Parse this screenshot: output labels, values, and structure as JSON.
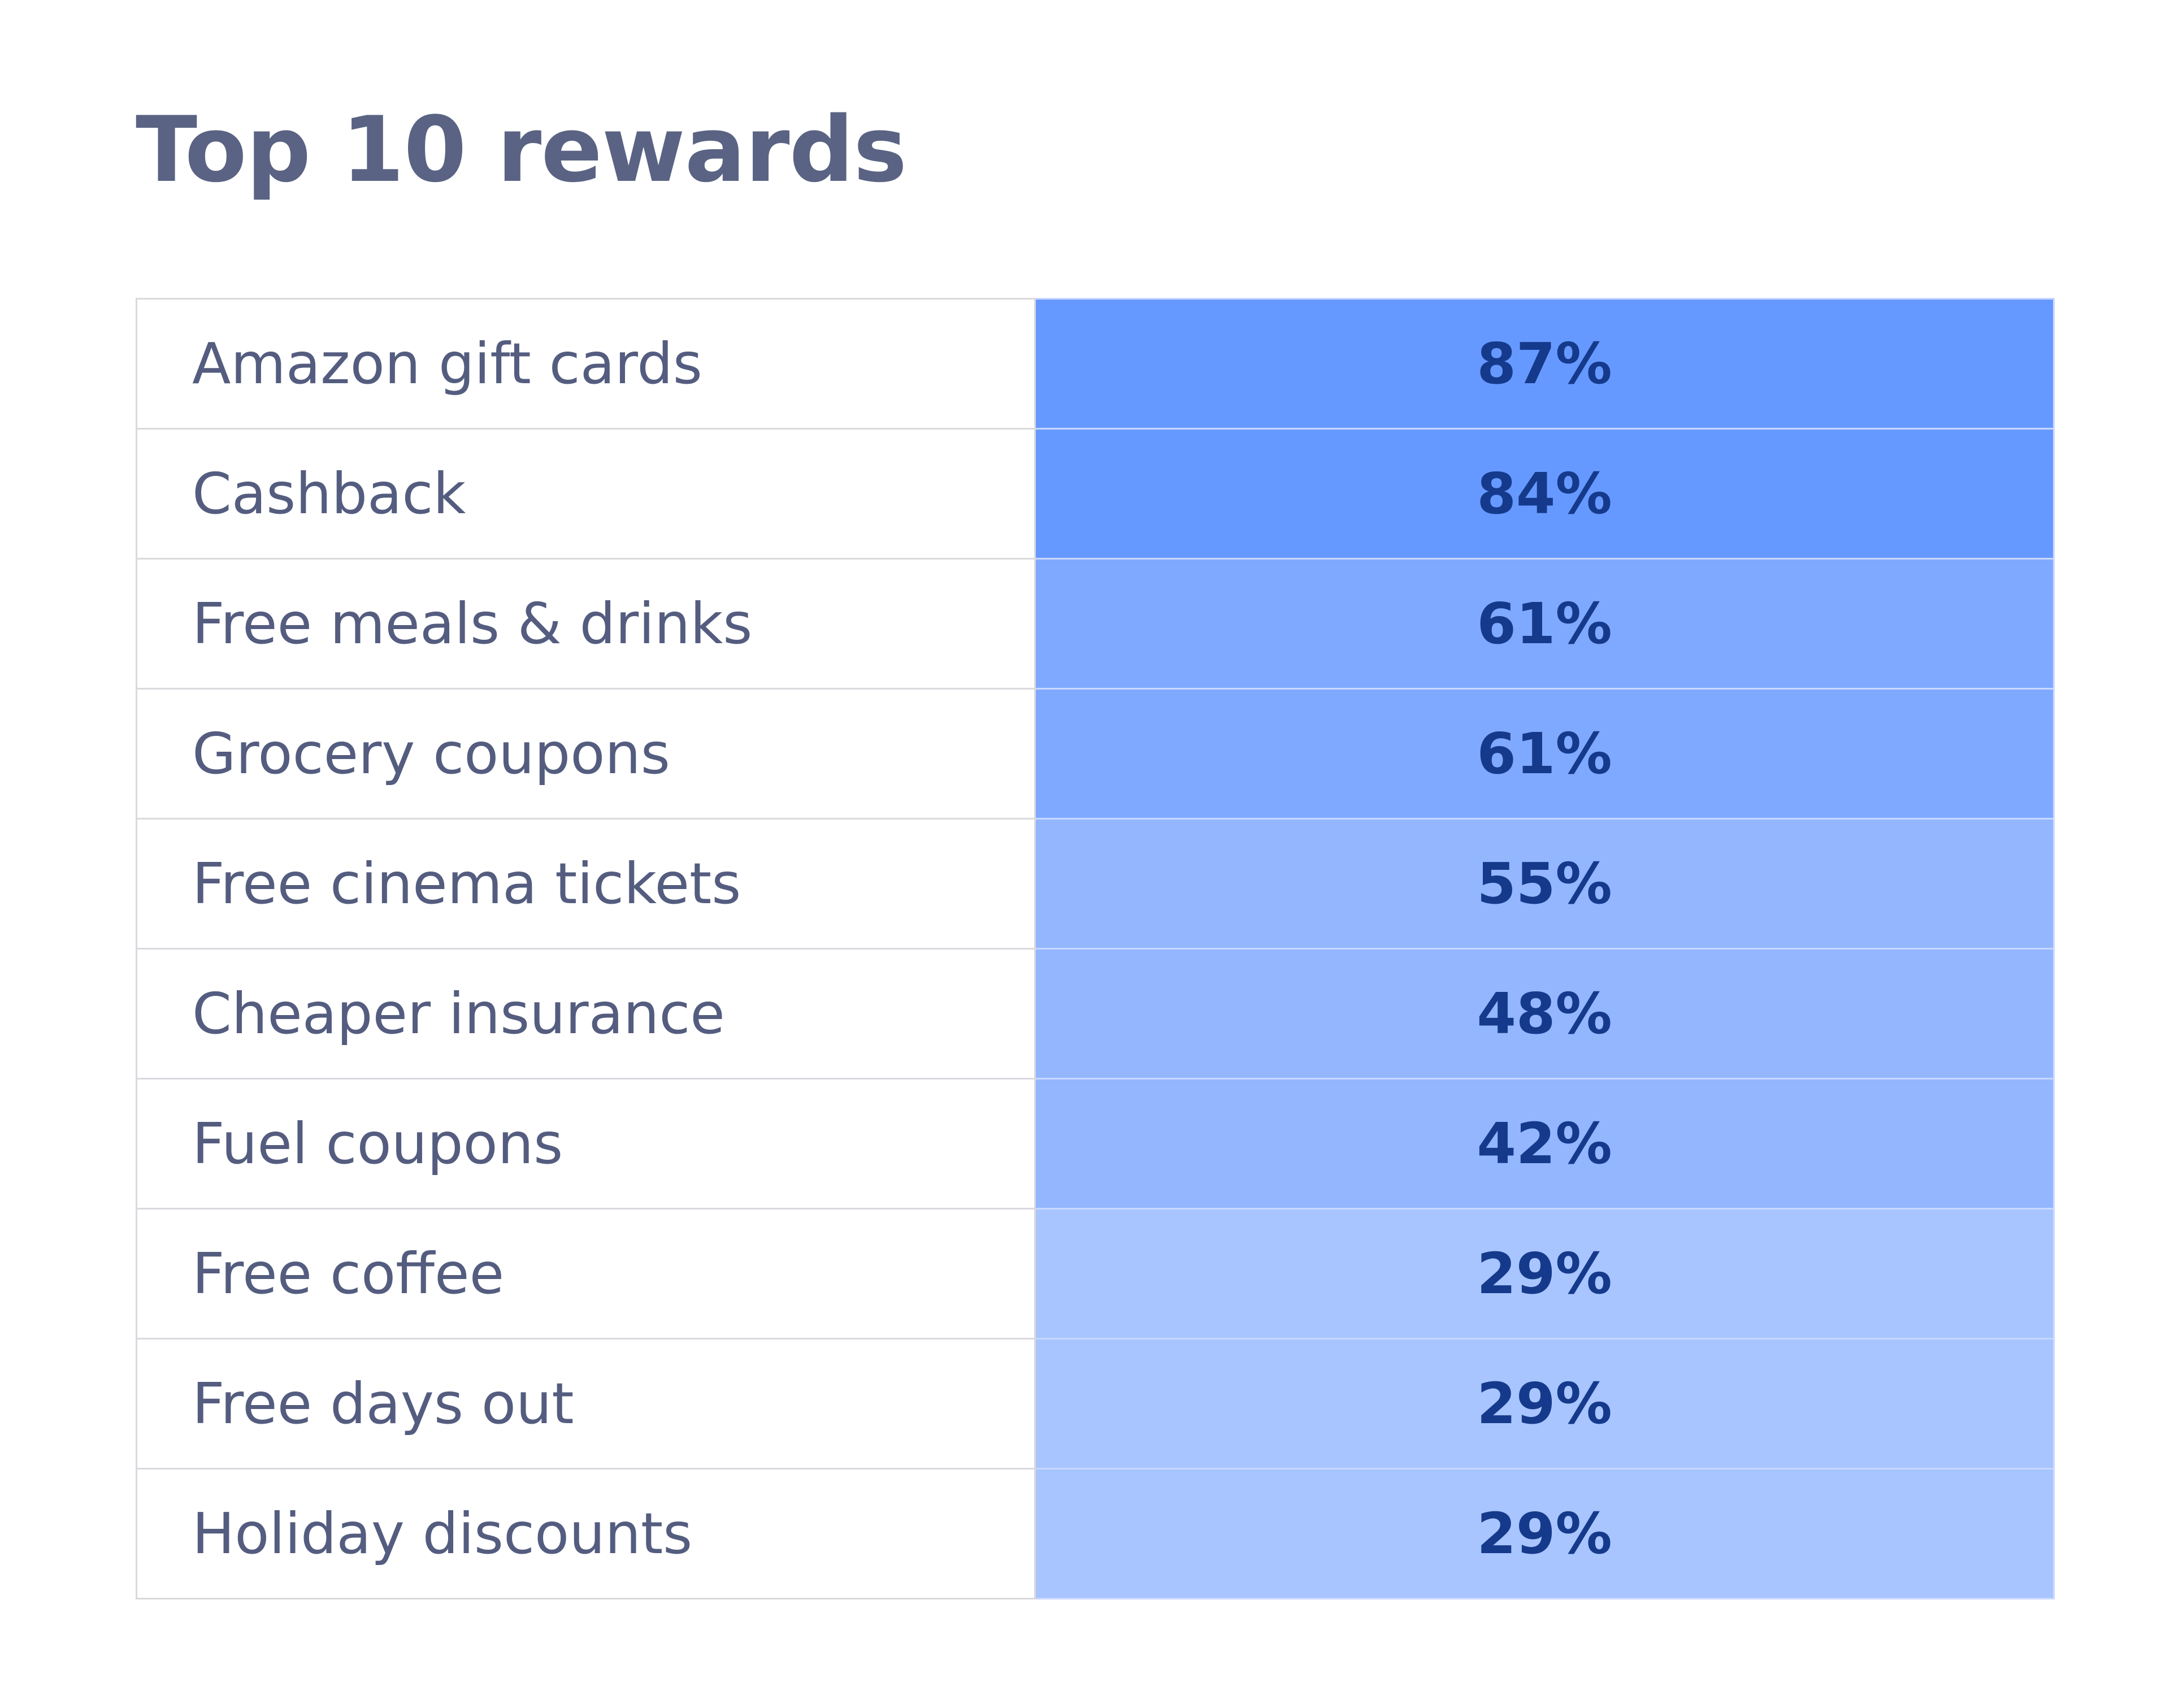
{
  "page": {
    "title": "Top 10 rewards"
  },
  "colors": {
    "title_text": "#5a6383",
    "label_text": "#545d7f",
    "value_text": "#153a8c",
    "cell_border": "#d9d9de",
    "value_shade_high": "#6699ff",
    "value_shade_mid_high": "#7fa9ff",
    "value_shade_mid": "#93b6ff",
    "value_shade_low": "#a8c5ff"
  },
  "chart_data": {
    "type": "table",
    "title": "Top 10 rewards",
    "columns": [],
    "rows": [
      {
        "label": "Amazon gift cards",
        "display": "87%",
        "value": 87,
        "shade": "#6699ff"
      },
      {
        "label": "Cashback",
        "display": "84%",
        "value": 84,
        "shade": "#6699ff"
      },
      {
        "label": "Free meals & drinks",
        "display": "61%",
        "value": 61,
        "shade": "#7fa9ff"
      },
      {
        "label": "Grocery coupons",
        "display": "61%",
        "value": 61,
        "shade": "#7fa9ff"
      },
      {
        "label": "Free cinema tickets",
        "display": "55%",
        "value": 55,
        "shade": "#93b6ff"
      },
      {
        "label": "Cheaper insurance",
        "display": "48%",
        "value": 48,
        "shade": "#93b6ff"
      },
      {
        "label": "Fuel coupons",
        "display": "42%",
        "value": 42,
        "shade": "#93b6ff"
      },
      {
        "label": "Free coffee",
        "display": "29%",
        "value": 29,
        "shade": "#a8c5ff"
      },
      {
        "label": "Free days out",
        "display": "29%",
        "value": 29,
        "shade": "#a8c5ff"
      },
      {
        "label": "Holiday discounts",
        "display": "29%",
        "value": 29,
        "shade": "#a8c5ff"
      }
    ]
  }
}
